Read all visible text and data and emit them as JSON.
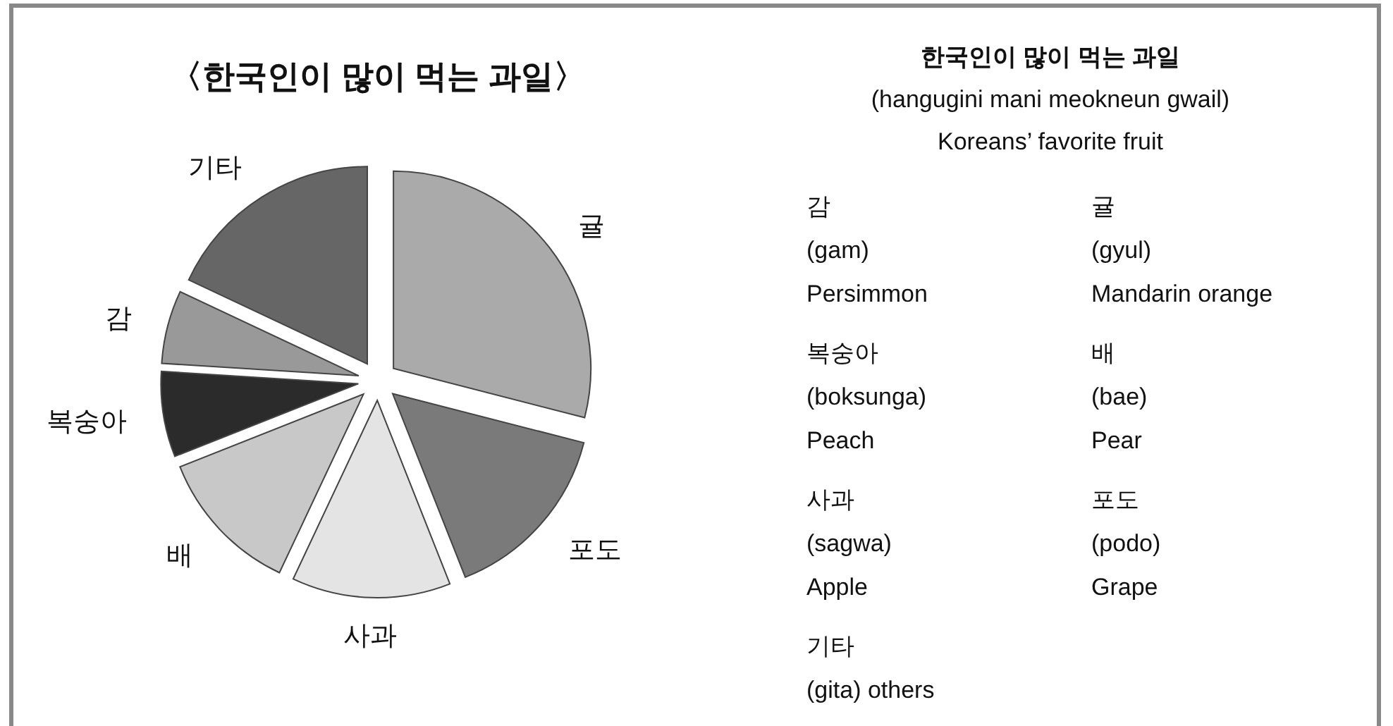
{
  "chart_data": [
    {
      "type": "pie",
      "title": "〈한국인이 많이 먹는 과일〉",
      "categories": [
        "귤",
        "포도",
        "사과",
        "배",
        "복숭아",
        "감",
        "기타"
      ],
      "values": [
        29,
        15,
        13,
        12,
        7,
        6,
        18
      ],
      "colors": [
        "#aaaaaa",
        "#7a7a7a",
        "#e4e4e4",
        "#c8c8c8",
        "#2b2b2b",
        "#999999",
        "#666666"
      ]
    },
    {
      "type": "other",
      "title": "한국인이 많이 먹는 과일",
      "subtitle": "(hangugini mani meokneun gwail)",
      "annotations": [
        "Koreans’ favorite fruit",
        "감\n(gam)\nPersimmon",
        "귤\n(gyul)\nMandarin orange",
        "복숭아\n(boksunga)\nPeach",
        "배\n(bae)\nPear",
        "사과\n(sagwa)\nApple",
        "포도\n(podo)\nGrape",
        "기타\n(gita) others"
      ]
    }
  ]
}
